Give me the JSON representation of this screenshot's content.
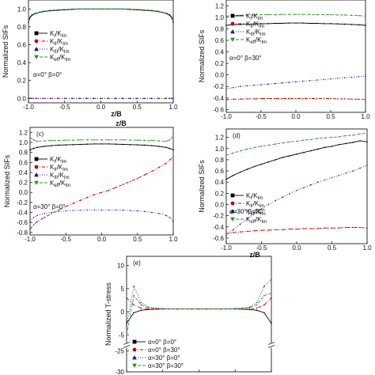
{
  "chart_data": [
    {
      "id": "a",
      "type": "line",
      "panel_label": "",
      "title": "",
      "xlabel": "z/B",
      "ylabel": "Normalized SIFs",
      "xlim": [
        -1.0,
        1.0
      ],
      "ylim": [
        -0.05,
        1.1
      ],
      "xticks": [
        -1.0,
        -0.5,
        0.0,
        0.5,
        1.0
      ],
      "xtick_labels": [
        "-1.0",
        "-0.5",
        "0.0",
        "0.5",
        "1.0"
      ],
      "yticks": [
        0.0,
        0.2,
        0.4,
        0.6,
        0.8,
        1.0
      ],
      "ytick_labels": [
        "0.0",
        "0.2",
        "0.4",
        "0.6",
        "0.8",
        "1.0"
      ],
      "legend": [
        {
          "label": "KI/KIm",
          "color": "#000000",
          "marker": "square",
          "dash": "solid"
        },
        {
          "label": "KII/KIm",
          "color": "#c00000",
          "marker": "circle",
          "dash": "dashdot"
        },
        {
          "label": "KIII/KIm",
          "color": "#1a1aa0",
          "marker": "triangle-up",
          "dash": "dot"
        },
        {
          "label": "Keff/KIm",
          "color": "#2a9a2a",
          "marker": "triangle-down",
          "dash": "dash"
        }
      ],
      "annotation": "α=0° β=0°",
      "x": [
        -1.0,
        -0.98,
        -0.95,
        -0.9,
        -0.8,
        -0.7,
        -0.6,
        -0.5,
        -0.4,
        -0.3,
        -0.2,
        -0.1,
        0.0,
        0.1,
        0.2,
        0.3,
        0.4,
        0.5,
        0.6,
        0.7,
        0.8,
        0.9,
        0.95,
        0.98,
        1.0
      ],
      "series": [
        {
          "name": "KI/KIm",
          "values": [
            0.85,
            0.9,
            0.93,
            0.95,
            0.97,
            0.98,
            0.985,
            0.99,
            0.995,
            1.0,
            1.0,
            1.0,
            1.0,
            1.0,
            1.0,
            1.0,
            0.995,
            0.99,
            0.985,
            0.98,
            0.97,
            0.95,
            0.93,
            0.9,
            0.85
          ]
        },
        {
          "name": "KII/KIm",
          "values": [
            0.0,
            0.0,
            0.0,
            0.0,
            0.0,
            0.0,
            0.0,
            0.0,
            0.0,
            0.0,
            0.0,
            0.0,
            0.0,
            0.0,
            0.0,
            0.0,
            0.0,
            0.0,
            0.0,
            0.0,
            0.0,
            0.0,
            0.0,
            0.0,
            0.0
          ]
        },
        {
          "name": "KIII/KIm",
          "values": [
            0.0,
            0.0,
            0.0,
            0.0,
            0.0,
            0.0,
            0.0,
            0.0,
            0.0,
            0.0,
            0.0,
            0.0,
            0.0,
            0.0,
            0.0,
            0.0,
            0.0,
            0.0,
            0.0,
            0.0,
            0.0,
            0.0,
            0.0,
            0.0,
            0.0
          ]
        },
        {
          "name": "Keff/KIm",
          "values": [
            0.86,
            0.91,
            0.94,
            0.955,
            0.975,
            0.985,
            0.99,
            0.995,
            1.0,
            1.0,
            1.0,
            1.0,
            1.0,
            1.0,
            1.0,
            1.0,
            1.0,
            0.995,
            0.99,
            0.985,
            0.975,
            0.955,
            0.94,
            0.91,
            0.86
          ]
        }
      ]
    },
    {
      "id": "b",
      "type": "line",
      "panel_label": "",
      "title": "",
      "xlabel": "z/B",
      "ylabel": "Normalized SIFs",
      "xlim": [
        -1.0,
        1.0
      ],
      "ylim": [
        -0.65,
        1.3
      ],
      "xticks": [
        -1.0,
        -0.5,
        0.0,
        0.5,
        1.0
      ],
      "xtick_labels": [
        "-1.0",
        "-0.5",
        "0.0",
        "0.5",
        "1.0"
      ],
      "yticks": [
        -0.6,
        -0.4,
        -0.2,
        0.0,
        0.2,
        0.4,
        0.6,
        0.8,
        1.0,
        1.2
      ],
      "ytick_labels": [
        "-0.6",
        "-0.4",
        "-0.2",
        "0.0",
        "0.2",
        "0.4",
        "0.6",
        "0.8",
        "1.0",
        "1.2"
      ],
      "legend": [
        {
          "label": "KI/KIm",
          "color": "#000000",
          "marker": "square",
          "dash": "solid"
        },
        {
          "label": "KII/KIm",
          "color": "#c00000",
          "marker": "circle",
          "dash": "dashdot"
        },
        {
          "label": "KIII/KIm",
          "color": "#1a1aa0",
          "marker": "triangle-up",
          "dash": "dot"
        },
        {
          "label": "Keff/KIm",
          "color": "#2a9a2a",
          "marker": "triangle-down",
          "dash": "dash"
        }
      ],
      "annotation": "α=0° β=30°",
      "x": [
        -1.0,
        -0.9,
        -0.8,
        -0.7,
        -0.6,
        -0.5,
        -0.4,
        -0.3,
        -0.2,
        -0.1,
        0.0,
        0.1,
        0.2,
        0.3,
        0.4,
        0.5,
        0.6,
        0.7,
        0.8,
        0.9,
        1.0
      ],
      "series": [
        {
          "name": "KI/KIm",
          "values": [
            0.86,
            0.87,
            0.875,
            0.88,
            0.885,
            0.89,
            0.89,
            0.895,
            0.895,
            0.9,
            0.9,
            0.9,
            0.895,
            0.895,
            0.89,
            0.89,
            0.885,
            0.88,
            0.875,
            0.87,
            0.86
          ]
        },
        {
          "name": "KII/KIm",
          "values": [
            -0.43,
            -0.42,
            -0.42,
            -0.415,
            -0.415,
            -0.41,
            -0.41,
            -0.41,
            -0.41,
            -0.41,
            -0.41,
            -0.41,
            -0.41,
            -0.41,
            -0.41,
            -0.41,
            -0.415,
            -0.415,
            -0.42,
            -0.42,
            -0.43
          ]
        },
        {
          "name": "KIII/KIm",
          "values": [
            -0.24,
            -0.22,
            -0.2,
            -0.19,
            -0.18,
            -0.17,
            -0.16,
            -0.15,
            -0.14,
            -0.13,
            -0.12,
            -0.11,
            -0.1,
            -0.09,
            -0.08,
            -0.07,
            -0.06,
            -0.05,
            -0.04,
            -0.03,
            -0.02
          ]
        },
        {
          "name": "Keff/KIm",
          "values": [
            1.02,
            1.03,
            1.035,
            1.04,
            1.04,
            1.045,
            1.045,
            1.045,
            1.05,
            1.05,
            1.05,
            1.05,
            1.05,
            1.045,
            1.045,
            1.045,
            1.04,
            1.04,
            1.035,
            1.03,
            1.02
          ]
        }
      ]
    },
    {
      "id": "c",
      "type": "line",
      "panel_label": "(c)",
      "title": "",
      "xlabel": "",
      "ylabel": "Normalized SIFs",
      "xlim": [
        -1.0,
        1.0
      ],
      "ylim": [
        -0.85,
        1.3
      ],
      "xticks": [
        -1.0,
        -0.5,
        0.0,
        0.5,
        1.0
      ],
      "xtick_labels": [
        "-1.0",
        "-0.5",
        "0.0",
        "0.5",
        "1.0"
      ],
      "yticks": [
        -0.8,
        -0.6,
        -0.4,
        -0.2,
        0.0,
        0.2,
        0.4,
        0.6,
        0.8,
        1.0,
        1.2
      ],
      "ytick_labels": [
        "-0.8",
        "-0.6",
        "-0.4",
        "-0.2",
        "0.0",
        "0.2",
        "0.4",
        "0.6",
        "0.8",
        "1.0",
        "1.2"
      ],
      "legend": [
        {
          "label": "KI/KIm",
          "color": "#000000",
          "marker": "square",
          "dash": "solid"
        },
        {
          "label": "KII/KIm",
          "color": "#c00000",
          "marker": "circle",
          "dash": "dashdot"
        },
        {
          "label": "KIII/KIm",
          "color": "#1a1aa0",
          "marker": "triangle-up",
          "dash": "dot"
        },
        {
          "label": "Keff/KIm",
          "color": "#2a9a2a",
          "marker": "triangle-down",
          "dash": "dash"
        }
      ],
      "annotation": "α=30° β=0°",
      "x": [
        -1.0,
        -0.95,
        -0.9,
        -0.8,
        -0.7,
        -0.6,
        -0.5,
        -0.4,
        -0.3,
        -0.2,
        -0.1,
        0.0,
        0.1,
        0.2,
        0.3,
        0.4,
        0.5,
        0.6,
        0.7,
        0.8,
        0.9,
        0.95,
        1.0
      ],
      "series": [
        {
          "name": "KI/KIm",
          "values": [
            0.85,
            0.88,
            0.9,
            0.92,
            0.935,
            0.945,
            0.95,
            0.955,
            0.96,
            0.965,
            0.97,
            0.97,
            0.97,
            0.965,
            0.96,
            0.955,
            0.95,
            0.945,
            0.935,
            0.92,
            0.9,
            0.88,
            0.85
          ]
        },
        {
          "name": "KII/KIm",
          "values": [
            -0.73,
            -0.65,
            -0.58,
            -0.5,
            -0.42,
            -0.35,
            -0.28,
            -0.22,
            -0.16,
            -0.1,
            -0.04,
            0.0,
            0.04,
            0.1,
            0.16,
            0.22,
            0.28,
            0.35,
            0.42,
            0.5,
            0.58,
            0.65,
            0.7
          ]
        },
        {
          "name": "KIII/KIm",
          "values": [
            -0.58,
            -0.5,
            -0.46,
            -0.42,
            -0.4,
            -0.38,
            -0.37,
            -0.36,
            -0.355,
            -0.35,
            -0.35,
            -0.35,
            -0.35,
            -0.35,
            -0.355,
            -0.36,
            -0.37,
            -0.38,
            -0.4,
            -0.42,
            -0.46,
            -0.5,
            -0.58
          ]
        },
        {
          "name": "Keff/KIm",
          "values": [
            1.1,
            1.05,
            1.02,
            1.03,
            1.04,
            1.04,
            1.045,
            1.045,
            1.05,
            1.05,
            1.05,
            1.05,
            1.05,
            1.05,
            1.05,
            1.045,
            1.045,
            1.04,
            1.04,
            1.03,
            1.02,
            1.05,
            1.12
          ]
        }
      ]
    },
    {
      "id": "d",
      "type": "line",
      "panel_label": "(d)",
      "title": "",
      "xlabel": "z/B",
      "ylabel": "Normalized SIFs",
      "xlim": [
        -1.0,
        1.0
      ],
      "ylim": [
        -0.7,
        1.35
      ],
      "xticks": [
        -1.0,
        -0.5,
        0.0,
        0.5,
        1.0
      ],
      "xtick_labels": [
        "-1.0",
        "-0.5",
        "0.0",
        "0.5",
        "1.0"
      ],
      "yticks": [
        -0.6,
        -0.4,
        -0.2,
        0.0,
        0.2,
        0.4,
        0.6,
        0.8,
        1.0,
        1.2
      ],
      "ytick_labels": [
        "-0.6",
        "-0.4",
        "-0.2",
        "0.0",
        "0.2",
        "0.4",
        "0.6",
        "0.8",
        "1.0",
        "1.2"
      ],
      "legend": [
        {
          "label": "KI/KIm",
          "color": "#000000",
          "marker": "square",
          "dash": "solid"
        },
        {
          "label": "KII/KIm",
          "color": "#c00000",
          "marker": "circle",
          "dash": "dashdot"
        },
        {
          "label": "KIII/KIm",
          "color": "#1a1aa0",
          "marker": "triangle-up",
          "dash": "dot"
        },
        {
          "label": "Keff/KIm",
          "color": "#2a9a2a",
          "marker": "triangle-down",
          "dash": "dash"
        }
      ],
      "annotation": "α=30° β=30°",
      "x": [
        -1.0,
        -0.9,
        -0.8,
        -0.7,
        -0.6,
        -0.5,
        -0.4,
        -0.3,
        -0.2,
        -0.1,
        0.0,
        0.1,
        0.2,
        0.3,
        0.4,
        0.5,
        0.6,
        0.7,
        0.8,
        0.9,
        1.0
      ],
      "series": [
        {
          "name": "KI/KIm",
          "values": [
            0.45,
            0.52,
            0.58,
            0.63,
            0.68,
            0.72,
            0.76,
            0.8,
            0.84,
            0.87,
            0.9,
            0.93,
            0.96,
            0.99,
            1.02,
            1.04,
            1.07,
            1.09,
            1.11,
            1.14,
            1.12
          ]
        },
        {
          "name": "KII/KIm",
          "values": [
            -0.52,
            -0.5,
            -0.49,
            -0.48,
            -0.47,
            -0.46,
            -0.46,
            -0.45,
            -0.45,
            -0.44,
            -0.44,
            -0.43,
            -0.43,
            -0.43,
            -0.42,
            -0.42,
            -0.42,
            -0.41,
            -0.41,
            -0.41,
            -0.42
          ]
        },
        {
          "name": "KIII/KIm",
          "values": [
            -0.55,
            -0.45,
            -0.35,
            -0.25,
            -0.16,
            -0.08,
            0.0,
            0.07,
            0.13,
            0.19,
            0.25,
            0.3,
            0.35,
            0.4,
            0.44,
            0.48,
            0.52,
            0.56,
            0.6,
            0.65,
            0.7
          ]
        },
        {
          "name": "Keff/KIm",
          "values": [
            0.88,
            0.92,
            0.96,
            0.99,
            1.02,
            1.04,
            1.06,
            1.08,
            1.1,
            1.12,
            1.13,
            1.15,
            1.16,
            1.18,
            1.19,
            1.2,
            1.21,
            1.23,
            1.24,
            1.26,
            1.28
          ]
        }
      ]
    },
    {
      "id": "e",
      "type": "line",
      "panel_label": "(e)",
      "title": "",
      "xlabel": "",
      "ylabel": "Normalized T-stress",
      "xlim": [
        -1.0,
        1.0
      ],
      "ylim": [
        -30,
        12
      ],
      "axis_break": true,
      "xticks": [
        -1.0,
        -0.5,
        0.0,
        0.5,
        1.0
      ],
      "xtick_labels": [
        "",
        "",
        "",
        "",
        ""
      ],
      "yticks": [
        10,
        5,
        0,
        -5,
        -25,
        -30
      ],
      "ytick_labels": [
        "10",
        "5",
        "0",
        "-5",
        "-25",
        "-30"
      ],
      "legend": [
        {
          "label": "α=0° β=0°",
          "color": "#000000",
          "marker": "square",
          "dash": "solid"
        },
        {
          "label": "α=0° β=30°",
          "color": "#c00000",
          "marker": "circle",
          "dash": "dashdot"
        },
        {
          "label": "α=30° β=0°",
          "color": "#1a1aa0",
          "marker": "triangle-up",
          "dash": "dot"
        },
        {
          "label": "α=30° β=30°",
          "color": "#2a9a2a",
          "marker": "triangle-down",
          "dash": "dash"
        }
      ],
      "x": [
        -1.0,
        -0.9,
        -0.8,
        -0.7,
        -0.5,
        -0.3,
        -0.1,
        0.0,
        0.1,
        0.3,
        0.5,
        0.7,
        0.8,
        0.9,
        1.0
      ],
      "series": [
        {
          "name": "α=0° β=0°",
          "values": [
            -2.5,
            -0.2,
            0.3,
            0.5,
            0.6,
            0.6,
            0.6,
            0.6,
            0.6,
            0.6,
            0.6,
            0.5,
            0.3,
            -0.2,
            -2.5
          ]
        },
        {
          "name": "α=0° β=30°",
          "values": [
            3.0,
            1.5,
            0.8,
            0.6,
            0.6,
            0.6,
            0.6,
            0.6,
            0.6,
            0.6,
            0.6,
            0.6,
            0.8,
            1.5,
            3.0
          ]
        },
        {
          "name": "α=30° β=0°",
          "values": [
            -3.0,
            5.5,
            2.0,
            1.0,
            0.7,
            0.6,
            0.6,
            0.6,
            0.6,
            0.6,
            0.7,
            1.0,
            2.0,
            5.5,
            7.0
          ]
        },
        {
          "name": "α=30° β=30°",
          "values": [
            -5.0,
            3.5,
            1.5,
            0.9,
            0.6,
            0.6,
            0.6,
            0.6,
            0.6,
            0.6,
            0.6,
            0.9,
            1.5,
            3.5,
            4.0
          ]
        }
      ]
    }
  ]
}
